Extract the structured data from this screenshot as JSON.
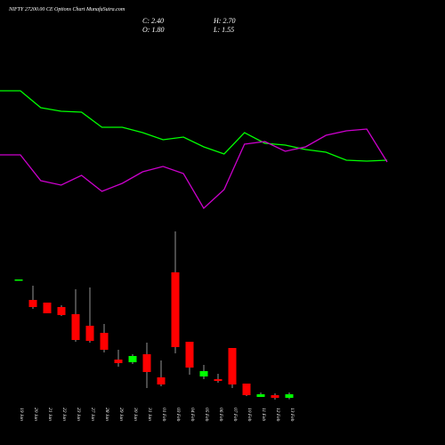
{
  "chart_data": {
    "type": "candlestick",
    "title": "NIFTY 27200.00 CE Options Chart MunafaSutra.com",
    "ohlc_labels": [
      "C: 2.40",
      "H: 2.70",
      "O: 1.80",
      "L: 1.55"
    ],
    "categories": [
      "19 Jan",
      "20 Jan",
      "21 Jan",
      "22 Jan",
      "23 Jan",
      "27 Jan",
      "28 Jan",
      "29 Jan",
      "30 Jan",
      "31 Jan",
      "01 Feb",
      "03 Feb",
      "04 Feb",
      "05 Feb",
      "06 Feb",
      "07 Feb",
      "10 Feb",
      "11 Feb",
      "12 Feb",
      "13 Feb"
    ],
    "open": [
      21.75,
      18.3,
      17.85,
      17.1,
      15.9,
      13.95,
      12.75,
      8.25,
      7.8,
      9.15,
      5.25,
      22.95,
      11.25,
      5.4,
      4.95,
      10.2,
      4.2,
      1.95,
      2.25,
      1.8
    ],
    "high": [
      21.75,
      20.7,
      17.85,
      17.4,
      20.1,
      20.4,
      14.25,
      9.9,
      9.15,
      11.1,
      8.1,
      29.85,
      11.25,
      7.35,
      5.85,
      10.2,
      4.2,
      2.7,
      2.55,
      2.7
    ],
    "low": [
      21.75,
      16.8,
      16.05,
      15.6,
      11.25,
      11.1,
      9.45,
      7.05,
      7.5,
      3.45,
      3.75,
      9.3,
      5.7,
      4.95,
      4.35,
      3.45,
      2.1,
      1.95,
      1.5,
      1.55
    ],
    "close": [
      21.75,
      17.1,
      16.05,
      15.75,
      11.55,
      11.4,
      9.9,
      7.65,
      8.85,
      6.15,
      4.05,
      10.35,
      6.9,
      6.3,
      4.65,
      4.05,
      2.25,
      2.4,
      1.8,
      2.4
    ],
    "up_color": "#00ff00",
    "down_color": "#ff0000",
    "ylim": [
      0.6,
      30.6
    ],
    "y2lim": [
      0,
      150
    ],
    "series": [
      {
        "color": "#00ff00",
        "axis": "y2",
        "values": [
          148,
          148,
          129,
          125,
          124,
          107,
          107,
          101,
          93,
          96,
          85,
          77,
          101,
          89,
          87,
          82,
          79,
          70,
          69,
          70
        ]
      },
      {
        "color": "#cc00cc",
        "axis": "y2",
        "values": [
          76,
          76,
          47,
          42,
          53,
          35,
          44,
          57,
          63,
          55,
          16,
          37,
          88,
          91,
          80,
          85,
          98,
          103,
          105,
          68
        ]
      }
    ]
  }
}
